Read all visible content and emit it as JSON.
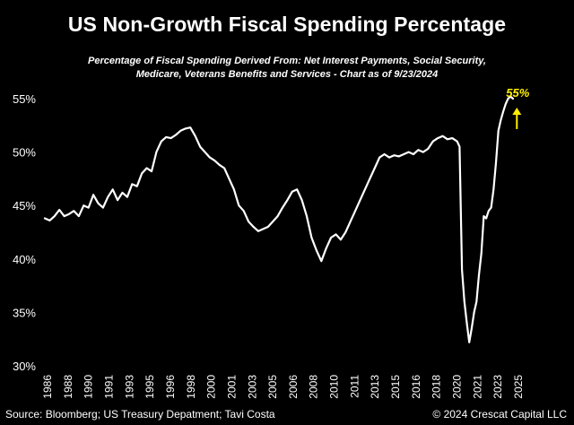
{
  "chart_data": {
    "type": "line",
    "title": "US Non-Growth Fiscal Spending Percentage",
    "subtitle_lines": [
      "Percentage of Fiscal Spending Derived From:  Net Interest Payments, Social Security,",
      "Medicare, Veterans Benefits and Services - Chart as of 9/23/2024"
    ],
    "xlabel": "",
    "ylabel": "",
    "x_ticks": [
      "1986",
      "1988",
      "1990",
      "1991",
      "1993",
      "1995",
      "1996",
      "1998",
      "2000",
      "2001",
      "2003",
      "2005",
      "2006",
      "2008",
      "2010",
      "2011",
      "2013",
      "2015",
      "2016",
      "2018",
      "2020",
      "2021",
      "2023",
      "2025"
    ],
    "y_ticks": [
      "30%",
      "35%",
      "40%",
      "45%",
      "50%",
      "55%"
    ],
    "ylim": [
      30,
      55
    ],
    "xlim": [
      1985.8,
      2025
    ],
    "grid": false,
    "line_color": "#ffffff",
    "series": [
      {
        "x": [
          1985.8,
          1986.2,
          1986.6,
          1987.0,
          1987.4,
          1987.8,
          1988.2,
          1988.6,
          1989.0,
          1989.4,
          1989.8,
          1990.2,
          1990.6,
          1991.0,
          1991.4,
          1991.8,
          1992.2,
          1992.6,
          1993.0,
          1993.4,
          1993.8,
          1994.2,
          1994.6,
          1995.0,
          1995.4,
          1995.8,
          1996.2,
          1996.6,
          1997.0,
          1997.4,
          1997.8,
          1998.2,
          1998.6,
          1999.0,
          1999.4,
          1999.8,
          2000.2,
          2000.6,
          2001.0,
          2001.4,
          2001.8,
          2002.2,
          2002.6,
          2003.0,
          2003.4,
          2003.8,
          2004.2,
          2004.6,
          2005.0,
          2005.4,
          2005.8,
          2006.2,
          2006.6,
          2007.0,
          2007.4,
          2007.8,
          2008.2,
          2008.6,
          2009.0,
          2009.4,
          2009.8,
          2010.2,
          2010.6,
          2011.0,
          2011.4,
          2011.8,
          2012.2,
          2012.6,
          2013.0,
          2013.4,
          2013.8,
          2014.2,
          2014.6,
          2015.0,
          2015.4,
          2015.8,
          2016.2,
          2016.6,
          2017.0,
          2017.4,
          2017.8,
          2018.2,
          2018.6,
          2019.0,
          2019.4,
          2019.8,
          2020.0,
          2020.2,
          2020.4,
          2020.6,
          2020.8,
          2021.0,
          2021.2,
          2021.4,
          2021.6,
          2021.8,
          2022.0,
          2022.2,
          2022.4,
          2022.6,
          2022.8,
          2023.0,
          2023.2,
          2023.4,
          2023.6,
          2023.8,
          2024.0,
          2024.2,
          2024.4
        ],
        "values": [
          43.8,
          43.6,
          44.0,
          44.6,
          44.0,
          44.2,
          44.5,
          44.0,
          45.0,
          44.8,
          46.0,
          45.2,
          44.8,
          45.8,
          46.5,
          45.5,
          46.2,
          45.8,
          47.0,
          46.8,
          48.0,
          48.5,
          48.2,
          50.0,
          51.0,
          51.4,
          51.3,
          51.6,
          52.0,
          52.2,
          52.3,
          51.5,
          50.5,
          50.0,
          49.5,
          49.2,
          48.8,
          48.5,
          47.5,
          46.5,
          45.0,
          44.5,
          43.5,
          43.0,
          42.6,
          42.8,
          43.0,
          43.5,
          44.0,
          44.8,
          45.5,
          46.3,
          46.5,
          45.5,
          44.0,
          42.0,
          40.8,
          39.8,
          41.0,
          42.0,
          42.3,
          41.8,
          42.5,
          43.5,
          44.5,
          45.5,
          46.5,
          47.5,
          48.5,
          49.5,
          49.8,
          49.5,
          49.7,
          49.6,
          49.8,
          50.0,
          49.8,
          50.2,
          50.0,
          50.3,
          51.0,
          51.3,
          51.5,
          51.2,
          51.3,
          51.0,
          50.5,
          39.0,
          36.0,
          34.0,
          32.2,
          33.5,
          35.0,
          36.0,
          38.5,
          40.5,
          44.0,
          43.8,
          44.5,
          44.8,
          46.5,
          49.0,
          52.0,
          53.0,
          53.8,
          54.5,
          55.0,
          55.2,
          55.0
        ]
      }
    ],
    "annotation": {
      "label": "55%",
      "color": "#ffee00",
      "x": 2024.8,
      "y": 54.5
    }
  },
  "footer": {
    "source": "Source: Bloomberg; US Treasury Depatment; Tavi Costa",
    "copyright": "© 2024 Crescat Capital LLC"
  }
}
